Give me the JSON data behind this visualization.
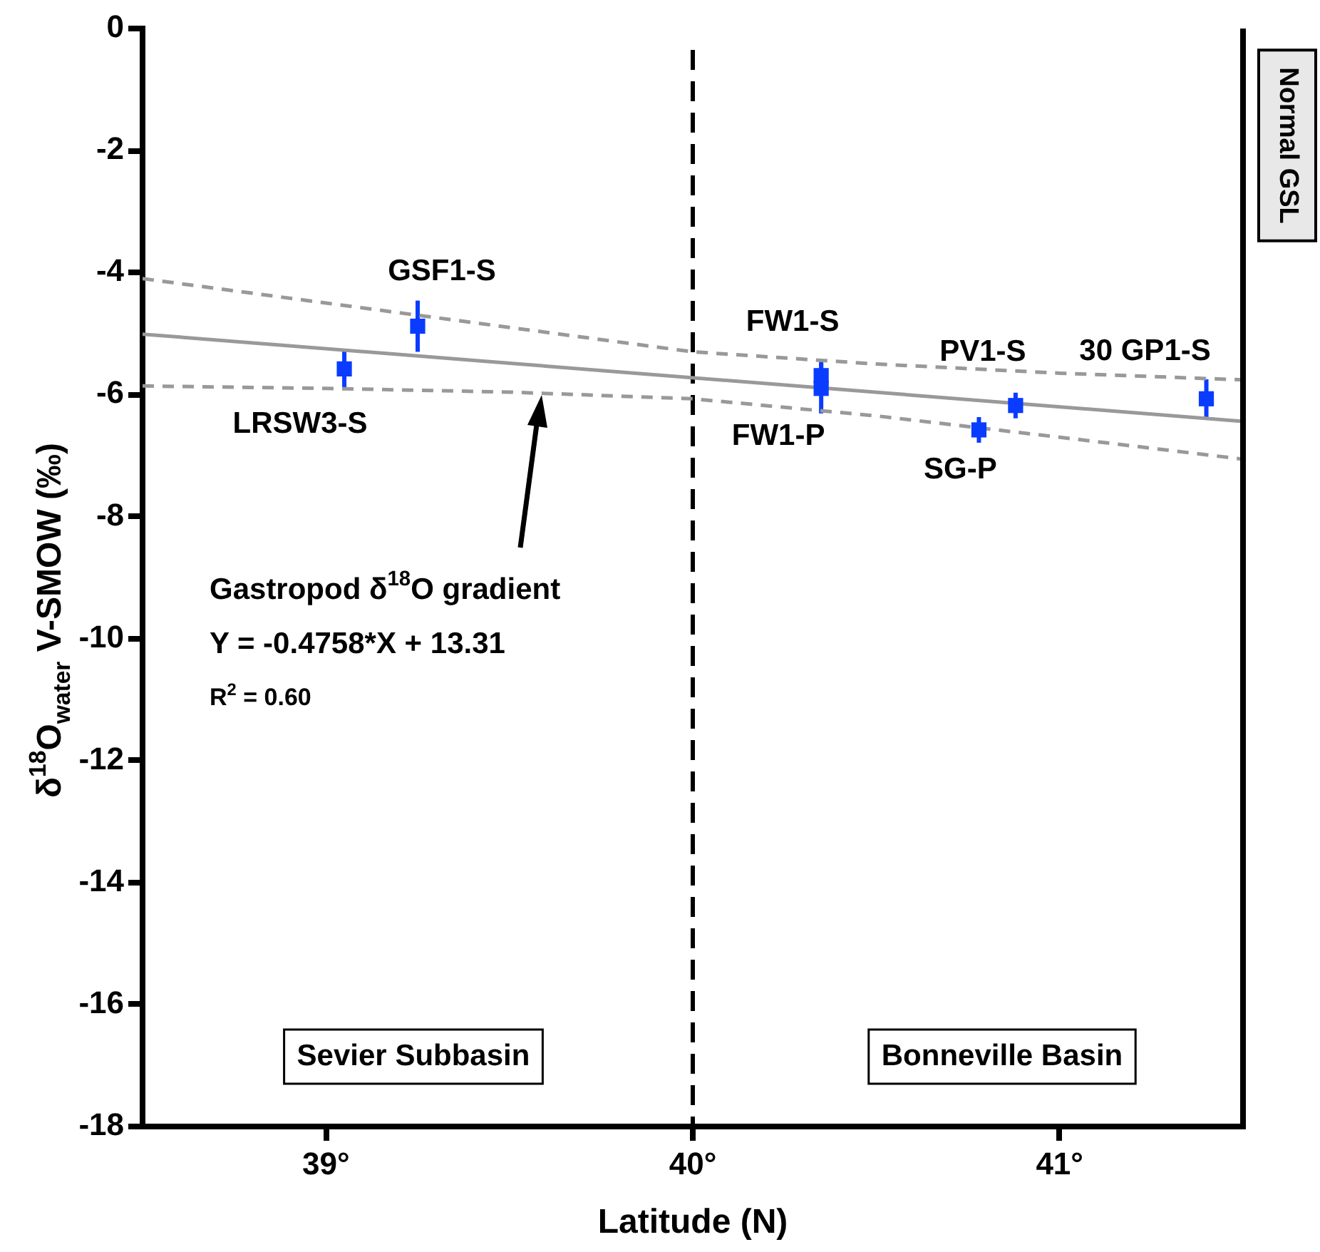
{
  "chart_data": {
    "type": "scatter",
    "xlabel": "Latitude (N)",
    "ylabel": "δ$^{18}$O$_{water}$ V-SMOW (‰)",
    "xlim": [
      38.5,
      41.5
    ],
    "xticks": [
      {
        "value": 39,
        "label": "39°"
      },
      {
        "value": 40,
        "label": "40°"
      },
      {
        "value": 41,
        "label": "41°"
      }
    ],
    "ylim": [
      -18,
      0
    ],
    "yticks": [
      -18,
      -16,
      -14,
      -12,
      -10,
      -8,
      -6,
      -4,
      -2,
      0
    ],
    "grid": false,
    "legend": false,
    "series": [
      {
        "color": "#0a3cff",
        "marker": "square",
        "x": [
          39.05,
          39.25,
          40.35,
          40.35,
          40.78,
          40.88,
          41.4
        ],
        "values": [
          -5.58,
          -4.88,
          -5.69,
          -5.9,
          -6.58,
          -6.18,
          -6.07
        ],
        "errors": [
          0.33,
          0.42,
          0.24,
          0.41,
          0.21,
          0.21,
          0.32
        ]
      },
      {
        "type": "line",
        "color": "#999999",
        "line_style": "solid",
        "marker": "none",
        "x": [
          38.5,
          41.5
        ],
        "values": [
          -5.01,
          -6.44
        ]
      },
      {
        "type": "line",
        "color": "#999999",
        "line_style": "dashed",
        "marker": "none",
        "x": [
          38.5,
          39,
          39.5,
          40,
          40.5,
          41,
          41.5
        ],
        "values": [
          -4.1,
          -4.5,
          -4.9,
          -5.3,
          -5.5,
          -5.65,
          -5.76
        ]
      },
      {
        "type": "line",
        "color": "#999999",
        "line_style": "dashed",
        "marker": "none",
        "x": [
          38.5,
          39,
          39.5,
          40,
          40.5,
          41,
          41.5
        ],
        "values": [
          -5.86,
          -5.9,
          -5.96,
          -6.07,
          -6.35,
          -6.7,
          -7.06
        ]
      }
    ],
    "ref_lines": [
      {
        "axis": "x",
        "value": 40,
        "color": "#000000",
        "line_style": "dashed"
      }
    ],
    "annotations": [
      {
        "text": "LRSW3-S",
        "x": 39.05,
        "y": -5.58
      },
      {
        "text": "GSF1-S",
        "x": 39.25,
        "y": -4.88
      },
      {
        "text": "FW1-S",
        "x": 40.35,
        "y": -5.69
      },
      {
        "text": "FW1-P",
        "x": 40.35,
        "y": -5.9
      },
      {
        "text": "SG-P",
        "x": 40.78,
        "y": -6.58
      },
      {
        "text": "PV1-S",
        "x": 40.88,
        "y": -6.18
      },
      {
        "text": "30 GP1-S",
        "x": 41.4,
        "y": -6.07
      },
      "Gastropod δ$^{18}$O gradient",
      "Y = -0.4758*X + 13.31",
      "R$^{2}$ = 0.60",
      "Sevier Subbasin",
      "Bonneville Basin",
      "Normal GSL"
    ]
  }
}
